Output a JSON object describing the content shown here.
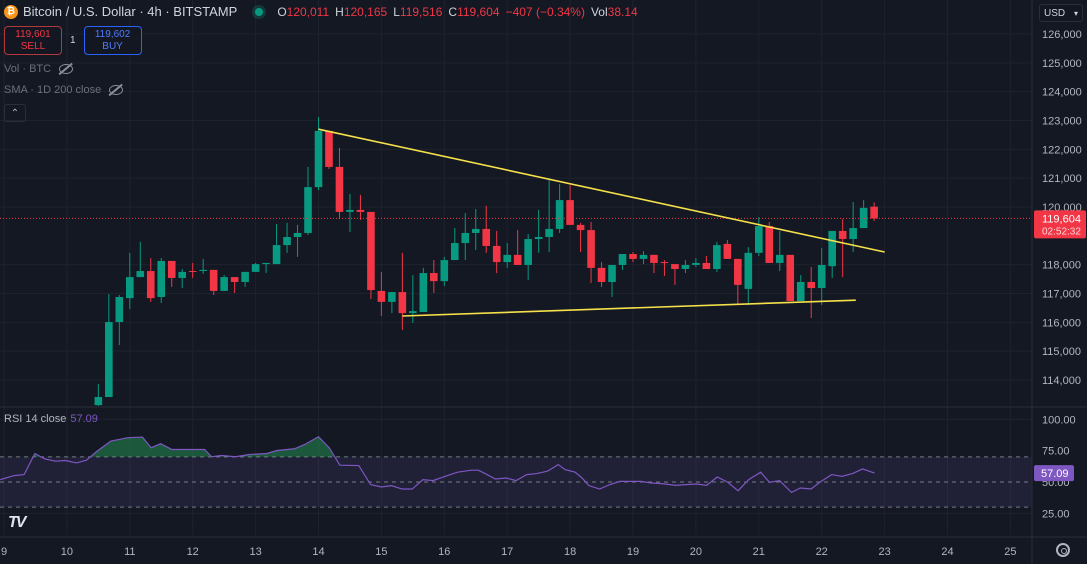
{
  "header": {
    "symbol_title": "Bitcoin / U.S. Dollar · 4h · BITSTAMP",
    "icon": "bitcoin-icon",
    "market_status": "open",
    "ohlc": [
      {
        "key": "O",
        "value": "120,011"
      },
      {
        "key": "H",
        "value": "120,165"
      },
      {
        "key": "L",
        "value": "119,516"
      },
      {
        "key": "C",
        "value": "119,604"
      }
    ],
    "change": "−407 (−0.34%)",
    "vol_label": "Vol",
    "vol_value": "38.14"
  },
  "trade": {
    "sell_price": "119,601",
    "sell_label": "SELL",
    "spread": "1",
    "buy_price": "119,602",
    "buy_label": "BUY"
  },
  "indicators": [
    {
      "label": "Vol · BTC",
      "hidden": true
    },
    {
      "label": "SMA · 1D 200 close",
      "hidden": true
    }
  ],
  "rsi_legend": {
    "label": "RSI 14 close",
    "value": "57.09"
  },
  "currency": "USD",
  "price_tag": {
    "price": "119,604",
    "countdown": "02:52:32"
  },
  "rsi_tag": "57.09",
  "colors": {
    "up": "#089981",
    "down": "#f23645",
    "trendline": "#f7e14a",
    "rsi": "#7e57c2",
    "background": "#141823"
  },
  "chart_data": [
    {
      "type": "candlestick",
      "interval": "4h",
      "y_ticks": [
        "126,000",
        "125,000",
        "124,000",
        "123,000",
        "122,000",
        "121,000",
        "120,000",
        "118,000",
        "117,000",
        "116,000",
        "115,000",
        "114,000"
      ],
      "y_tick_values": [
        126000,
        125000,
        124000,
        123000,
        122000,
        121000,
        120000,
        118000,
        117000,
        116000,
        115000,
        114000
      ],
      "x_ticks": [
        "9",
        "10",
        "11",
        "12",
        "13",
        "14",
        "15",
        "16",
        "17",
        "18",
        "19",
        "20",
        "21",
        "22",
        "23",
        "24",
        "25"
      ],
      "grid": true,
      "last_price": 119604,
      "candles_fields": [
        "time",
        "open",
        "high",
        "low",
        "close"
      ],
      "candles": [
        [
          "10 12:00",
          113130,
          113860,
          113100,
          113410
        ],
        [
          "10 16:00",
          113410,
          116980,
          113410,
          116010
        ],
        [
          "10 20:00",
          116010,
          116950,
          115210,
          116880
        ],
        [
          "11 00:00",
          116840,
          118410,
          116460,
          117570
        ],
        [
          "11 04:00",
          117570,
          118790,
          117570,
          117780
        ],
        [
          "11 08:00",
          117780,
          118230,
          116710,
          116840
        ],
        [
          "11 12:00",
          116880,
          118230,
          116670,
          118130
        ],
        [
          "11 16:00",
          118130,
          118130,
          117230,
          117540
        ],
        [
          "11 20:00",
          117540,
          117850,
          117190,
          117750
        ],
        [
          "12 00:00",
          117780,
          118060,
          117540,
          117750
        ],
        [
          "12 04:00",
          117780,
          118200,
          117680,
          117820
        ],
        [
          "12 08:00",
          117820,
          117820,
          116950,
          117090
        ],
        [
          "12 12:00",
          117090,
          117640,
          117090,
          117570
        ],
        [
          "12 16:00",
          117570,
          117570,
          117020,
          117400
        ],
        [
          "12 20:00",
          117400,
          117750,
          117230,
          117750
        ],
        [
          "13 00:00",
          117750,
          118060,
          117750,
          118020
        ],
        [
          "13 04:00",
          118020,
          118060,
          117710,
          118060
        ],
        [
          "13 08:00",
          118020,
          119410,
          118020,
          118680
        ],
        [
          "13 12:00",
          118680,
          119450,
          118410,
          118960
        ],
        [
          "13 16:00",
          118960,
          119380,
          118270,
          119100
        ],
        [
          "13 20:00",
          119100,
          121390,
          119030,
          120690
        ],
        [
          "14 00:00",
          120690,
          123120,
          120590,
          122640
        ],
        [
          "14 04:00",
          122640,
          122640,
          121320,
          121390
        ],
        [
          "14 08:00",
          121390,
          122050,
          119580,
          119830
        ],
        [
          "14 12:00",
          119830,
          120450,
          119130,
          119900
        ],
        [
          "14 16:00",
          119900,
          120420,
          119550,
          119830
        ],
        [
          "14 20:00",
          119830,
          119830,
          116810,
          117120
        ],
        [
          "15 00:00",
          117090,
          117750,
          116220,
          116710
        ],
        [
          "15 04:00",
          116710,
          117050,
          116320,
          117050
        ],
        [
          "15 08:00",
          117050,
          118410,
          115740,
          116320
        ],
        [
          "15 12:00",
          116320,
          117640,
          115980,
          116390
        ],
        [
          "15 16:00",
          116360,
          117890,
          116360,
          117710
        ],
        [
          "15 20:00",
          117710,
          118160,
          117020,
          117430
        ],
        [
          "16 00:00",
          117430,
          118270,
          117260,
          118160
        ],
        [
          "16 04:00",
          118160,
          119270,
          118160,
          118750
        ],
        [
          "16 08:00",
          118750,
          119790,
          118160,
          119100
        ],
        [
          "16 12:00",
          119100,
          119930,
          118510,
          119240
        ],
        [
          "16 16:00",
          119240,
          120040,
          118410,
          118650
        ],
        [
          "16 20:00",
          118650,
          119170,
          117710,
          118090
        ],
        [
          "17 00:00",
          118090,
          118750,
          117890,
          118340
        ],
        [
          "17 04:00",
          118340,
          119200,
          117990,
          117990
        ],
        [
          "17 08:00",
          117990,
          119060,
          117470,
          118890
        ],
        [
          "17 12:00",
          118890,
          119900,
          118410,
          118960
        ],
        [
          "17 16:00",
          118960,
          120940,
          118440,
          119240
        ],
        [
          "17 20:00",
          119240,
          120800,
          119100,
          120240
        ],
        [
          "18 00:00",
          120240,
          120760,
          119380,
          119380
        ],
        [
          "18 04:00",
          119380,
          119450,
          118440,
          119200
        ],
        [
          "18 08:00",
          119200,
          119480,
          117370,
          117890
        ],
        [
          "18 12:00",
          117890,
          118090,
          117230,
          117400
        ],
        [
          "18 16:00",
          117400,
          117990,
          116880,
          117990
        ],
        [
          "18 20:00",
          117990,
          118370,
          117820,
          118370
        ],
        [
          "19 00:00",
          118370,
          118440,
          118090,
          118200
        ],
        [
          "19 04:00",
          118200,
          118470,
          118020,
          118340
        ],
        [
          "19 08:00",
          118340,
          118340,
          117710,
          118060
        ],
        [
          "19 12:00",
          118090,
          118160,
          117610,
          118060
        ],
        [
          "19 16:00",
          118020,
          118020,
          117300,
          117850
        ],
        [
          "19 20:00",
          117850,
          118160,
          117710,
          117990
        ],
        [
          "20 00:00",
          117990,
          118230,
          117920,
          118060
        ],
        [
          "20 04:00",
          118060,
          118300,
          117850,
          117850
        ],
        [
          "20 08:00",
          117850,
          118790,
          117750,
          118680
        ],
        [
          "20 12:00",
          118720,
          118860,
          118200,
          118200
        ],
        [
          "20 16:00",
          118200,
          118200,
          116600,
          117300
        ],
        [
          "20 20:00",
          117160,
          118610,
          116600,
          118410
        ],
        [
          "21 00:00",
          118410,
          119650,
          118300,
          119340
        ],
        [
          "21 04:00",
          119340,
          119480,
          118060,
          118060
        ],
        [
          "21 08:00",
          118060,
          119170,
          117780,
          118340
        ],
        [
          "21 12:00",
          118340,
          118340,
          116740,
          116740
        ],
        [
          "21 16:00",
          116740,
          117640,
          116740,
          117400
        ],
        [
          "21 20:00",
          117400,
          117920,
          116150,
          117190
        ],
        [
          "22 00:00",
          117190,
          118580,
          116600,
          117990
        ],
        [
          "22 04:00",
          117950,
          119170,
          117540,
          119170
        ],
        [
          "22 08:00",
          119170,
          119580,
          117570,
          118890
        ],
        [
          "22 12:00",
          118890,
          120170,
          118440,
          119270
        ],
        [
          "22 16:00",
          119270,
          120240,
          119270,
          119970
        ],
        [
          "22 20:00",
          120011,
          120165,
          119516,
          119604
        ]
      ],
      "trendlines": [
        {
          "from": [
            "14 00:00",
            122700
          ],
          "to": [
            "23 00:00",
            118440
          ]
        },
        {
          "from": [
            "15 08:00",
            116220
          ],
          "to": [
            "22 13:00",
            116770
          ]
        }
      ]
    },
    {
      "type": "line",
      "name": "RSI 14 close",
      "y_ticks": [
        "100.00",
        "75.00",
        "50.00",
        "25.00"
      ],
      "y_tick_values": [
        100,
        75,
        50,
        25
      ],
      "ylim": [
        0,
        100
      ],
      "bands": [
        70,
        50,
        30
      ],
      "x_unit": "day of month",
      "points": [
        [
          8.94,
          51.9
        ],
        [
          9.16,
          55.1
        ],
        [
          9.32,
          55.9
        ],
        [
          9.49,
          72.7
        ],
        [
          9.65,
          68.4
        ],
        [
          9.82,
          66.6
        ],
        [
          9.98,
          67.1
        ],
        [
          10.15,
          65.2
        ],
        [
          10.31,
          67.4
        ],
        [
          10.48,
          74.6
        ],
        [
          10.7,
          82.6
        ],
        [
          10.97,
          85.3
        ],
        [
          11.2,
          85.8
        ],
        [
          11.34,
          77.3
        ],
        [
          11.49,
          80.5
        ],
        [
          11.67,
          75.9
        ],
        [
          11.91,
          75.9
        ],
        [
          12.19,
          75.9
        ],
        [
          12.3,
          70.1
        ],
        [
          12.46,
          71.1
        ],
        [
          12.68,
          70.1
        ],
        [
          12.9,
          71.9
        ],
        [
          13.18,
          72.7
        ],
        [
          13.34,
          75.1
        ],
        [
          13.62,
          76.5
        ],
        [
          13.78,
          79.9
        ],
        [
          14.0,
          86.1
        ],
        [
          14.17,
          77.3
        ],
        [
          14.34,
          63.4
        ],
        [
          14.64,
          63.1
        ],
        [
          14.83,
          47.9
        ],
        [
          15.0,
          46.0
        ],
        [
          15.16,
          47.1
        ],
        [
          15.33,
          44.4
        ],
        [
          15.49,
          44.4
        ],
        [
          15.66,
          51.9
        ],
        [
          15.82,
          51.1
        ],
        [
          16.05,
          55.1
        ],
        [
          16.21,
          57.8
        ],
        [
          16.43,
          59.4
        ],
        [
          16.54,
          59.4
        ],
        [
          16.65,
          56.7
        ],
        [
          16.81,
          52.4
        ],
        [
          16.98,
          53.2
        ],
        [
          17.14,
          51.1
        ],
        [
          17.31,
          55.9
        ],
        [
          17.47,
          56.7
        ],
        [
          17.64,
          58.6
        ],
        [
          17.81,
          63.9
        ],
        [
          17.92,
          59.9
        ],
        [
          18.08,
          57.8
        ],
        [
          18.19,
          53.2
        ],
        [
          18.3,
          47.1
        ],
        [
          18.47,
          44.4
        ],
        [
          18.63,
          47.9
        ],
        [
          18.79,
          50.5
        ],
        [
          18.96,
          50.5
        ],
        [
          19.13,
          50.5
        ],
        [
          19.29,
          49.2
        ],
        [
          19.46,
          48.7
        ],
        [
          19.68,
          47.3
        ],
        [
          19.84,
          47.9
        ],
        [
          20.01,
          48.4
        ],
        [
          20.17,
          47.3
        ],
        [
          20.34,
          54.0
        ],
        [
          20.51,
          49.7
        ],
        [
          20.67,
          43.0
        ],
        [
          20.84,
          51.9
        ],
        [
          21.03,
          57.8
        ],
        [
          21.17,
          49.7
        ],
        [
          21.33,
          51.1
        ],
        [
          21.52,
          41.7
        ],
        [
          21.66,
          45.2
        ],
        [
          21.83,
          44.4
        ],
        [
          21.99,
          50.5
        ],
        [
          22.16,
          55.9
        ],
        [
          22.32,
          54.5
        ],
        [
          22.49,
          56.7
        ],
        [
          22.65,
          60.4
        ],
        [
          22.84,
          57.09
        ]
      ]
    }
  ]
}
